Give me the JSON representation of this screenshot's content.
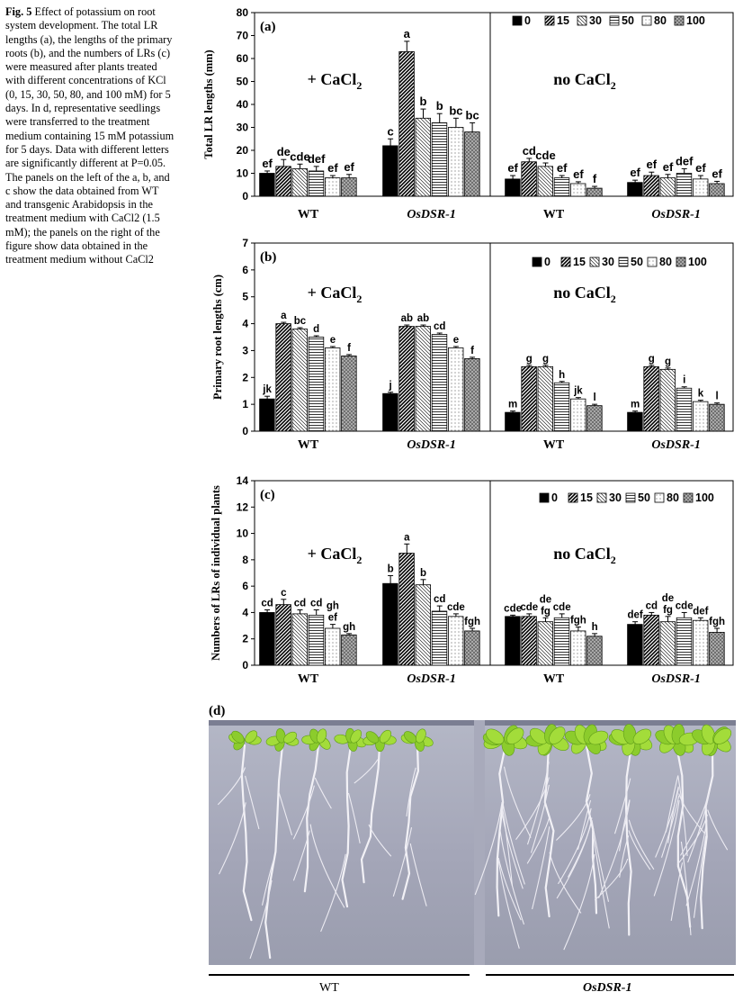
{
  "caption": {
    "fig_label": "Fig. 5",
    "text": "Effect of potassium on root system development. The total LR lengths (a), the lengths of the primary roots (b), and the numbers of LRs (c) were measured after plants treated with different concentrations of KCl (0, 15, 30, 50, 80, and 100 mM) for 5 days. In d, representative seedlings were transferred to the treatment medium containing 15 mM potassium for 5 days. Data with different letters are significantly different at P=0.05. The panels on the left of the a, b, and c show the data obtained from WT and transgenic Arabidopsis in the treatment medium with CaCl2 (1.5 mM); the panels on the right of the figure show data obtained in the treatment medium without CaCl2"
  },
  "legend_entries": [
    "0",
    "15",
    "30",
    "50",
    "80",
    "100"
  ],
  "chart_data": [
    {
      "type": "bar",
      "panel_label": "(a)",
      "ylabel": "Total LR lengths (mm)",
      "ylim": [
        0,
        80
      ],
      "yticks": [
        0,
        10,
        20,
        30,
        40,
        50,
        60,
        70,
        80
      ],
      "left_title": "+ CaCl2",
      "right_title": "no CaCl2",
      "groups": [
        "WT",
        "OsDSR-1",
        "WT",
        "OsDSR-1"
      ],
      "series_names": [
        "0",
        "15",
        "30",
        "50",
        "80",
        "100"
      ],
      "values": [
        [
          10,
          13,
          12,
          11,
          8,
          8
        ],
        [
          22,
          63,
          34,
          32,
          30,
          28
        ],
        [
          7.5,
          15,
          13,
          8,
          5.5,
          3.5
        ],
        [
          6,
          9,
          8,
          10,
          7.5,
          5.5
        ]
      ],
      "errors": [
        [
          1,
          3,
          2,
          2,
          1,
          1.5
        ],
        [
          3,
          4.5,
          4,
          4,
          4,
          4
        ],
        [
          1.5,
          1.5,
          1.5,
          1,
          0.8,
          0.8
        ],
        [
          1,
          1.5,
          1.5,
          2,
          1.5,
          1
        ]
      ],
      "letters": [
        [
          "ef",
          "de",
          "cde",
          "def",
          "ef",
          "ef"
        ],
        [
          "c",
          "a",
          "b",
          "b",
          "bc",
          "bc"
        ],
        [
          "ef",
          "cd",
          "cde",
          "ef",
          "ef",
          "f"
        ],
        [
          "ef",
          "ef",
          "ef",
          "def",
          "ef",
          "ef"
        ]
      ]
    },
    {
      "type": "bar",
      "panel_label": "(b)",
      "ylabel": "Primary root lengths (cm)",
      "ylim": [
        0,
        7
      ],
      "yticks": [
        0,
        1,
        2,
        3,
        4,
        5,
        6,
        7
      ],
      "left_title": "+ CaCl2",
      "right_title": "no CaCl2",
      "groups": [
        "WT",
        "OsDSR-1",
        "WT",
        "OsDSR-1"
      ],
      "series_names": [
        "0",
        "15",
        "30",
        "50",
        "80",
        "100"
      ],
      "values": [
        [
          1.2,
          4.0,
          3.8,
          3.5,
          3.1,
          2.8
        ],
        [
          1.4,
          3.9,
          3.9,
          3.6,
          3.1,
          2.7
        ],
        [
          0.7,
          2.4,
          2.4,
          1.8,
          1.2,
          0.95
        ],
        [
          0.7,
          2.4,
          2.3,
          1.6,
          1.1,
          1.0
        ]
      ],
      "errors": [
        [
          0.1,
          0.05,
          0.05,
          0.05,
          0.05,
          0.05
        ],
        [
          0.05,
          0.05,
          0.05,
          0.05,
          0.05,
          0.05
        ],
        [
          0.05,
          0.05,
          0.05,
          0.05,
          0.05,
          0.05
        ],
        [
          0.05,
          0.05,
          0.05,
          0.05,
          0.05,
          0.05
        ]
      ],
      "letters": [
        [
          "jk",
          "a",
          "bc",
          "d",
          "e",
          "f"
        ],
        [
          "j",
          "ab",
          "ab",
          "cd",
          "e",
          "f"
        ],
        [
          "m",
          "g",
          "g",
          "h",
          "jk",
          "l"
        ],
        [
          "m",
          "g",
          "g",
          "i",
          "k",
          "l"
        ]
      ]
    },
    {
      "type": "bar",
      "panel_label": "(c)",
      "ylabel": "Numbers of LRs of individual plants",
      "ylim": [
        0,
        14
      ],
      "yticks": [
        0,
        2,
        4,
        6,
        8,
        10,
        12,
        14
      ],
      "left_title": "+ CaCl2",
      "right_title": "no CaCl2",
      "groups": [
        "WT",
        "OsDSR-1",
        "WT",
        "OsDSR-1"
      ],
      "series_names": [
        "0",
        "15",
        "30",
        "50",
        "80",
        "100"
      ],
      "values": [
        [
          4.0,
          4.6,
          3.9,
          3.8,
          2.8,
          2.3
        ],
        [
          6.2,
          8.5,
          6.1,
          4.1,
          3.7,
          2.6
        ],
        [
          3.7,
          3.7,
          3.3,
          3.6,
          2.6,
          2.2
        ],
        [
          3.1,
          3.8,
          3.3,
          3.6,
          3.4,
          2.5
        ]
      ],
      "errors": [
        [
          0.2,
          0.4,
          0.3,
          0.4,
          0.3,
          0.1
        ],
        [
          0.6,
          0.7,
          0.4,
          0.4,
          0.2,
          0.2
        ],
        [
          0.1,
          0.2,
          0.3,
          0.3,
          0.3,
          0.2
        ],
        [
          0.2,
          0.2,
          0.4,
          0.4,
          0.2,
          0.3
        ]
      ],
      "letters": [
        [
          "cd",
          "c",
          "cd",
          "cd",
          "ef",
          "gh"
        ],
        [
          "b",
          "a",
          "b",
          "cd",
          "cde",
          "fgh"
        ],
        [
          "cde",
          "cde",
          "fg",
          "cde",
          "fgh",
          "h"
        ],
        [
          "def",
          "cd",
          "fg",
          "cde",
          "def",
          "fgh"
        ]
      ],
      "letters_upper": [
        [
          "",
          "",
          "",
          "",
          "gh",
          ""
        ],
        [
          "",
          "",
          "",
          "",
          "",
          ""
        ],
        [
          "",
          "",
          "de",
          "",
          "",
          ""
        ],
        [
          "",
          "",
          "de",
          "",
          "",
          ""
        ]
      ]
    }
  ],
  "photo": {
    "panel_label": "(d)",
    "groups": [
      "WT",
      "OsDSR-1"
    ]
  }
}
